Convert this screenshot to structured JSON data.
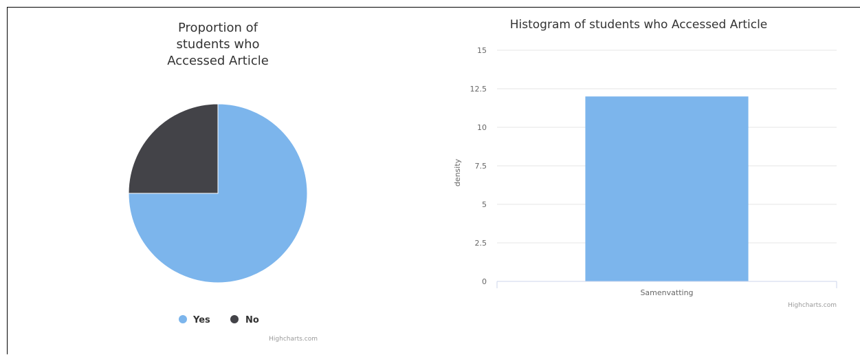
{
  "chart_data": [
    {
      "type": "pie",
      "title_lines": [
        "Proportion of",
        "students who",
        "Accessed Article"
      ],
      "slices": [
        {
          "label": "Yes",
          "value": 75,
          "color": "#7cb5ec"
        },
        {
          "label": "No",
          "value": 25,
          "color": "#434348"
        }
      ],
      "legend": "bottom-center",
      "credit": "Highcharts.com"
    },
    {
      "type": "bar",
      "title": "Histogram of students who Accessed Article",
      "categories": [
        "Samenvatting"
      ],
      "values": [
        12
      ],
      "ylabel": "density",
      "ylim": [
        0,
        15
      ],
      "yticks": [
        "0",
        "2.5",
        "5",
        "7.5",
        "10",
        "12.5",
        "15"
      ],
      "bar_color": "#7cb5ec",
      "grid": true,
      "credit": "Highcharts.com"
    }
  ]
}
